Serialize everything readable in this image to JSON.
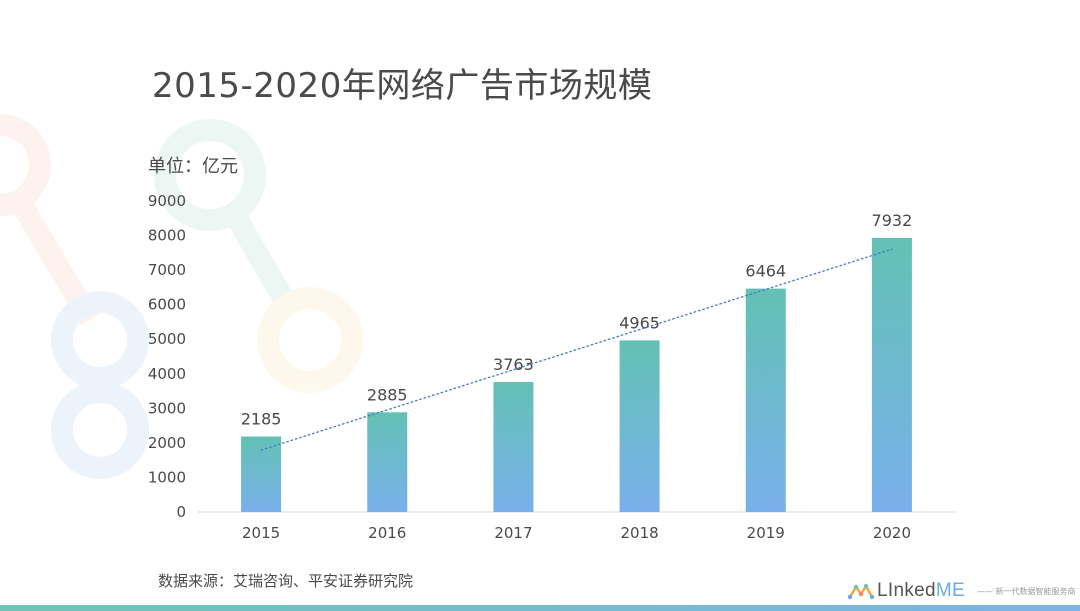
{
  "page": {
    "title": "2015-2020年网络广告市场规模",
    "unit_label": "单位：亿元",
    "source": "数据来源：艾瑞咨询、平安证券研究院"
  },
  "brand": {
    "name_prefix": "LInked",
    "name_suffix": "ME",
    "tagline": "—— 新一代数据智能服务商"
  },
  "colors": {
    "bar_top": "#63c1b4",
    "bar_bottom": "#79b0ec",
    "trend": "#4a78c4",
    "text": "#4a4a4a"
  },
  "chart_data": {
    "type": "bar",
    "categories": [
      "2015",
      "2016",
      "2017",
      "2018",
      "2019",
      "2020"
    ],
    "values": [
      2185,
      2885,
      3763,
      4965,
      6464,
      7932
    ],
    "y_ticks": [
      0,
      1000,
      2000,
      3000,
      4000,
      5000,
      6000,
      7000,
      8000,
      9000
    ],
    "ylim": [
      0,
      9000
    ],
    "data_labels": true,
    "trendline": "linear-dotted",
    "grid": false,
    "legend": "none"
  }
}
